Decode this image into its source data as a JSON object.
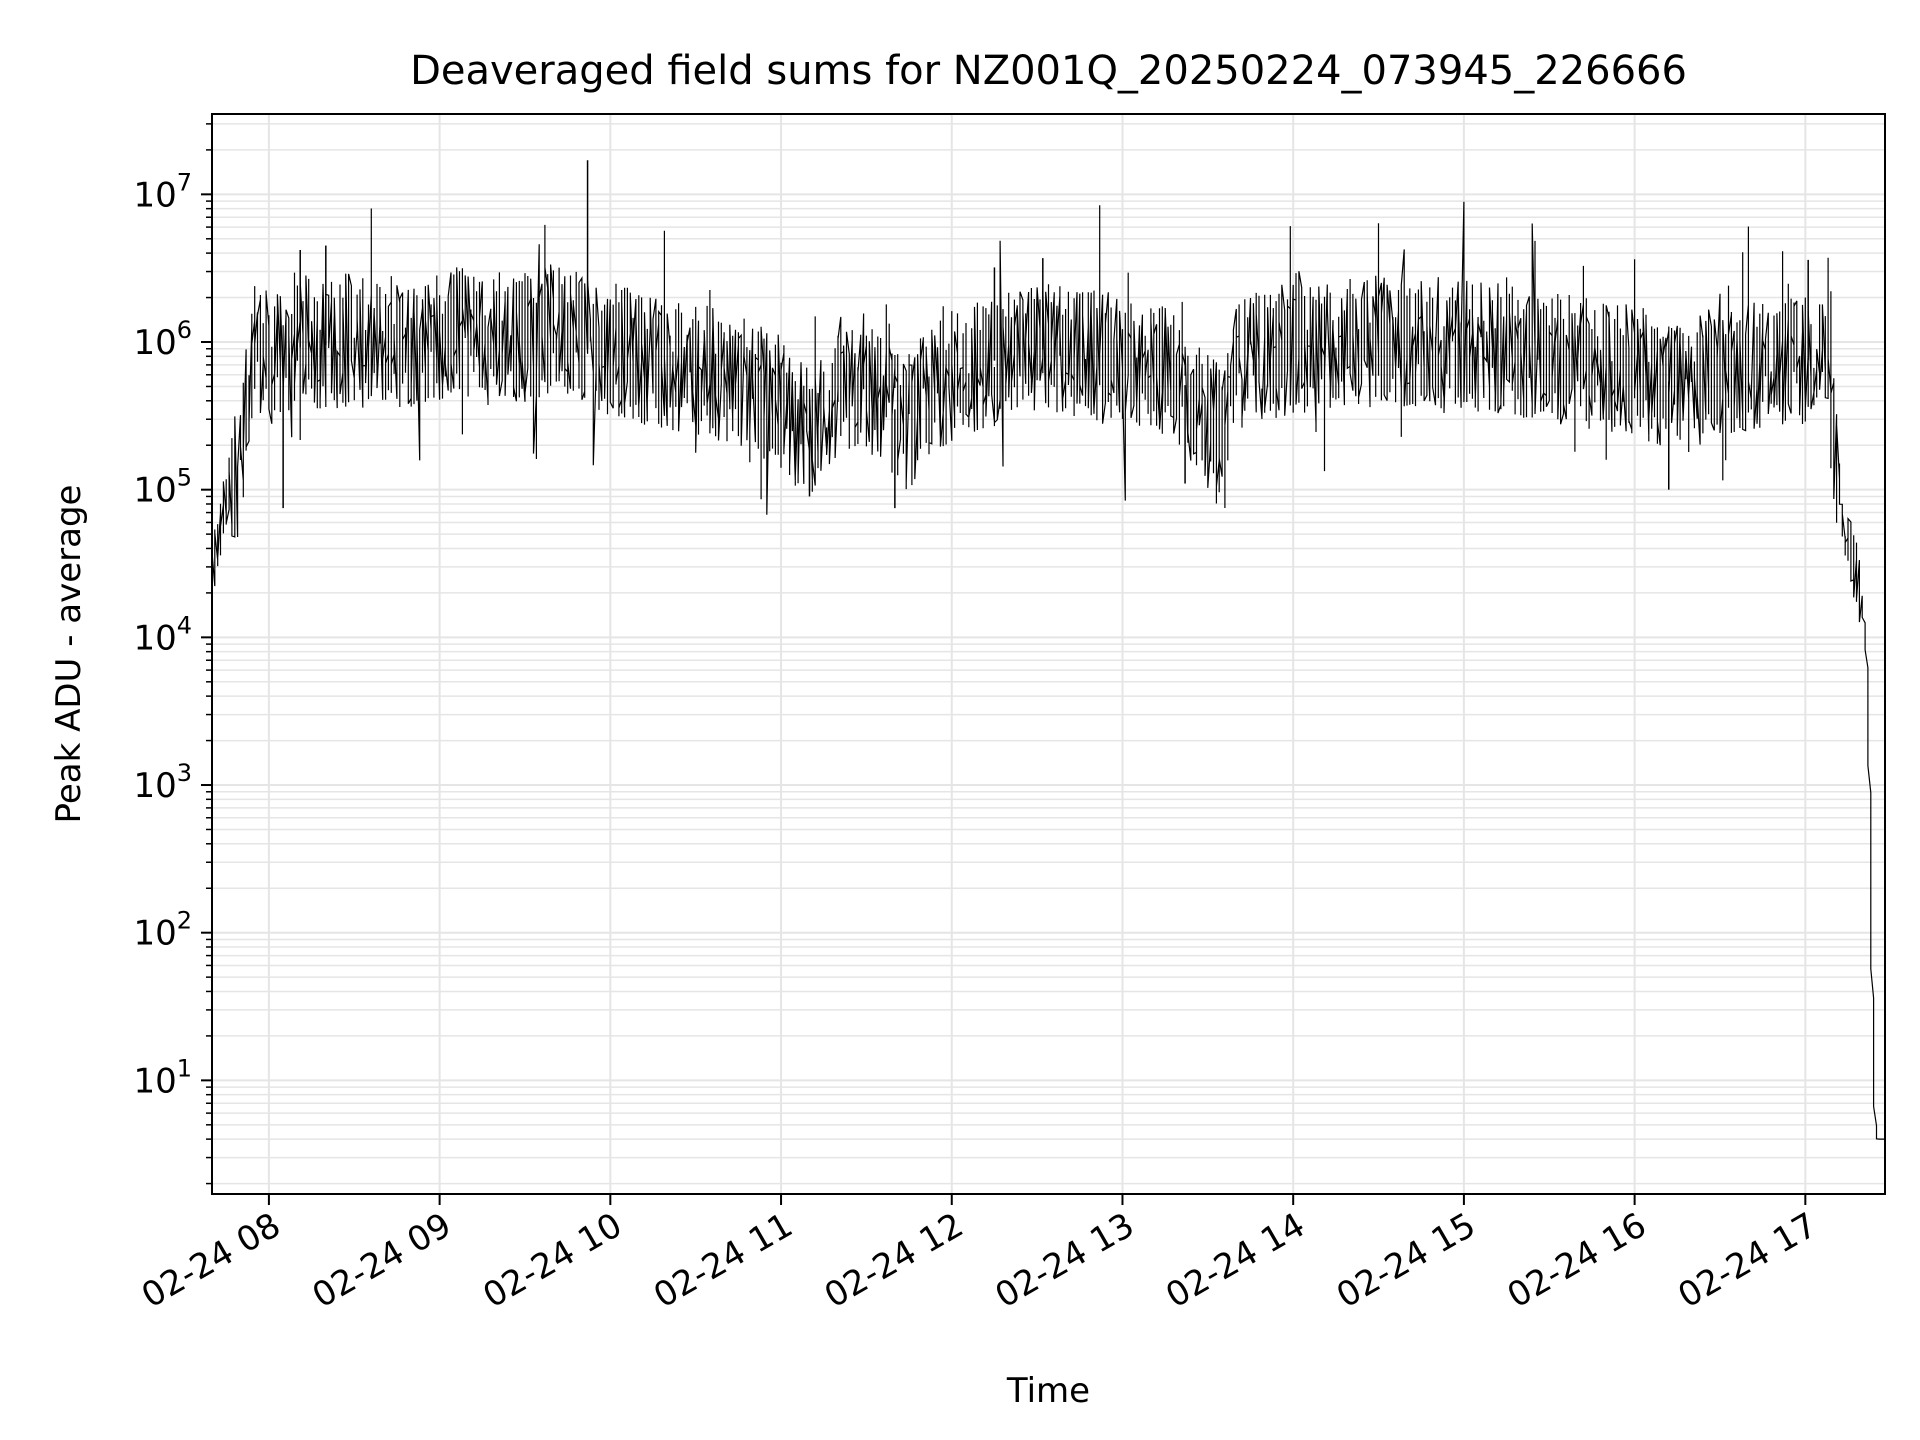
{
  "chart_data": {
    "type": "line",
    "title": "Deaveraged field sums for NZ001Q_20250224_073945_226666",
    "xlabel": "Time",
    "ylabel": "Peak ADU - average",
    "y_scale": "log",
    "ylim": [
      1.7,
      35000000
    ],
    "xlim": [
      "2025-02-24 07:40",
      "2025-02-24 17:28"
    ],
    "x_ticks": [
      {
        "value": "2025-02-24 08:00",
        "label": "02-24 08"
      },
      {
        "value": "2025-02-24 09:00",
        "label": "02-24 09"
      },
      {
        "value": "2025-02-24 10:00",
        "label": "02-24 10"
      },
      {
        "value": "2025-02-24 11:00",
        "label": "02-24 11"
      },
      {
        "value": "2025-02-24 12:00",
        "label": "02-24 12"
      },
      {
        "value": "2025-02-24 13:00",
        "label": "02-24 13"
      },
      {
        "value": "2025-02-24 14:00",
        "label": "02-24 14"
      },
      {
        "value": "2025-02-24 15:00",
        "label": "02-24 15"
      },
      {
        "value": "2025-02-24 16:00",
        "label": "02-24 16"
      },
      {
        "value": "2025-02-24 17:00",
        "label": "02-24 17"
      }
    ],
    "y_ticks": [
      {
        "value": 10,
        "base": "10",
        "exp": "1"
      },
      {
        "value": 100,
        "base": "10",
        "exp": "2"
      },
      {
        "value": 1000,
        "base": "10",
        "exp": "3"
      },
      {
        "value": 10000,
        "base": "10",
        "exp": "4"
      },
      {
        "value": 100000,
        "base": "10",
        "exp": "5"
      },
      {
        "value": 1000000,
        "base": "10",
        "exp": "6"
      },
      {
        "value": 10000000,
        "base": "10",
        "exp": "7"
      }
    ],
    "grid": true,
    "line_color": "#000000",
    "grid_color": "#e5e5e5",
    "series": [
      {
        "x": [
          "2025-02-24 07:40",
          "2025-02-24 07:42",
          "2025-02-24 07:44",
          "2025-02-24 07:46",
          "2025-02-24 07:48",
          "2025-02-24 07:50",
          "2025-02-24 07:52",
          "2025-02-24 07:54",
          "2025-02-24 07:56",
          "2025-02-24 07:58",
          "2025-02-24 08:02",
          "2025-02-24 08:05",
          "2025-02-24 08:10",
          "2025-02-24 08:15",
          "2025-02-24 08:20",
          "2025-02-24 08:25",
          "2025-02-24 08:30",
          "2025-02-24 08:35",
          "2025-02-24 08:40",
          "2025-02-24 08:45",
          "2025-02-24 08:50",
          "2025-02-24 08:55",
          "2025-02-24 09:00",
          "2025-02-24 09:10",
          "2025-02-24 09:20",
          "2025-02-24 09:30",
          "2025-02-24 09:40",
          "2025-02-24 09:50",
          "2025-02-24 09:52",
          "2025-02-24 09:55",
          "2025-02-24 10:00",
          "2025-02-24 10:10",
          "2025-02-24 10:20",
          "2025-02-24 10:30",
          "2025-02-24 10:40",
          "2025-02-24 10:50",
          "2025-02-24 11:00",
          "2025-02-24 11:05",
          "2025-02-24 11:10",
          "2025-02-24 11:20",
          "2025-02-24 11:30",
          "2025-02-24 11:40",
          "2025-02-24 11:45",
          "2025-02-24 11:50",
          "2025-02-24 12:00",
          "2025-02-24 12:10",
          "2025-02-24 12:20",
          "2025-02-24 12:30",
          "2025-02-24 12:40",
          "2025-02-24 12:50",
          "2025-02-24 13:00",
          "2025-02-24 13:10",
          "2025-02-24 13:20",
          "2025-02-24 13:25",
          "2025-02-24 13:30",
          "2025-02-24 13:35",
          "2025-02-24 13:40",
          "2025-02-24 13:50",
          "2025-02-24 14:00",
          "2025-02-24 14:10",
          "2025-02-24 14:20",
          "2025-02-24 14:30",
          "2025-02-24 14:40",
          "2025-02-24 14:50",
          "2025-02-24 15:00",
          "2025-02-24 15:10",
          "2025-02-24 15:20",
          "2025-02-24 15:30",
          "2025-02-24 15:40",
          "2025-02-24 15:50",
          "2025-02-24 16:00",
          "2025-02-24 16:10",
          "2025-02-24 16:20",
          "2025-02-24 16:30",
          "2025-02-24 16:40",
          "2025-02-24 16:50",
          "2025-02-24 17:00",
          "2025-02-24 17:05",
          "2025-02-24 17:08",
          "2025-02-24 17:10",
          "2025-02-24 17:12",
          "2025-02-24 17:14",
          "2025-02-24 17:16",
          "2025-02-24 17:18",
          "2025-02-24 17:20",
          "2025-02-24 17:22",
          "2025-02-24 17:23",
          "2025-02-24 17:24",
          "2025-02-24 17:25",
          "2025-02-24 17:26",
          "2025-02-24 17:28"
        ],
        "y": [
          25000,
          40000,
          60000,
          90000,
          110000,
          150000,
          300000,
          800000,
          1100000,
          900000,
          700000,
          800000,
          900000,
          1000000,
          950000,
          1000000,
          1100000,
          900000,
          1000000,
          1100000,
          1000000,
          1050000,
          1100000,
          1200000,
          1000000,
          1100000,
          1200000,
          1300000,
          900000,
          1000000,
          900000,
          800000,
          700000,
          650000,
          600000,
          500000,
          400000,
          300000,
          250000,
          400000,
          500000,
          350000,
          250000,
          400000,
          600000,
          700000,
          800000,
          900000,
          850000,
          800000,
          750000,
          700000,
          600000,
          400000,
          300000,
          250000,
          700000,
          800000,
          900000,
          950000,
          1000000,
          1000000,
          950000,
          900000,
          1000000,
          900000,
          850000,
          800000,
          750000,
          700000,
          650000,
          550000,
          500000,
          650000,
          700000,
          750000,
          700000,
          1000000,
          700000,
          300000,
          100000,
          50000,
          40000,
          30000,
          20000,
          8000,
          1000,
          50,
          5,
          4,
          4
        ],
        "peak_samples_upper": [
          [
            "2025-02-24 08:20",
            4500000
          ],
          [
            "2025-02-24 08:11",
            4200000
          ],
          [
            "2025-02-24 09:52",
            17000000
          ],
          [
            "2025-02-24 12:15",
            3200000
          ],
          [
            "2025-02-24 12:32",
            3700000
          ],
          [
            "2025-02-24 17:01",
            3600000
          ]
        ],
        "dip_samples_lower": [
          [
            "2025-02-24 08:05",
            75000
          ],
          [
            "2025-02-24 11:10",
            90000
          ],
          [
            "2025-02-24 11:40",
            75000
          ],
          [
            "2025-02-24 13:22",
            110000
          ],
          [
            "2025-02-24 16:12",
            100000
          ]
        ]
      }
    ]
  }
}
